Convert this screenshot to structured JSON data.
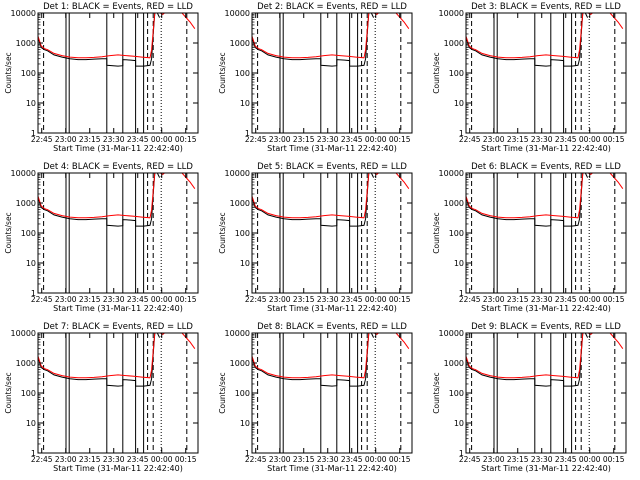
{
  "figure": {
    "shared": {
      "type": "line",
      "ylabel": "Counts/sec",
      "xlabel": "Start Time (31-Mar-11 22:42:40)",
      "yscale": "log",
      "ylim": [
        1,
        10000
      ],
      "y_ticks": [
        {
          "v": 1,
          "label": "1"
        },
        {
          "v": 10,
          "label": "10"
        },
        {
          "v": 100,
          "label": "100"
        },
        {
          "v": 1000,
          "label": "1000"
        },
        {
          "v": 10000,
          "label": "10000"
        }
      ],
      "xlim_minutes": [
        0,
        100
      ],
      "x_ticks": [
        {
          "v": 2.33,
          "label": "22:45"
        },
        {
          "v": 17.33,
          "label": "23:00"
        },
        {
          "v": 32.33,
          "label": "23:15"
        },
        {
          "v": 47.33,
          "label": "23:30"
        },
        {
          "v": 62.33,
          "label": "23:45"
        },
        {
          "v": 77.33,
          "label": "00:00"
        },
        {
          "v": 92.33,
          "label": "00:15"
        }
      ],
      "colors": {
        "black_series": "#000000",
        "red_series": "#ff0000",
        "background": "#ffffff"
      },
      "legend": "none"
    },
    "panels": [
      {
        "title": "Det 1: BLACK = Events, RED = LLD"
      },
      {
        "title": "Det 2: BLACK = Events, RED = LLD"
      },
      {
        "title": "Det 3: BLACK = Events, RED = LLD"
      },
      {
        "title": "Det 4: BLACK = Events, RED = LLD"
      },
      {
        "title": "Det 5: BLACK = Events, RED = LLD"
      },
      {
        "title": "Det 6: BLACK = Events, RED = LLD"
      },
      {
        "title": "Det 7: BLACK = Events, RED = LLD"
      },
      {
        "title": "Det 8: BLACK = Events, RED = LLD"
      },
      {
        "title": "Det 9: BLACK = Events, RED = LLD"
      }
    ]
  },
  "chart_data": {
    "type": "line",
    "ylabel": "Counts/sec",
    "xlabel": "Start Time (31-Mar-11 22:42:40)",
    "yscale": "log",
    "ylim": [
      1,
      10000
    ],
    "grid": false,
    "x_unit": "minutes since 22:42:40",
    "series": [
      {
        "name": "BLACK = Events",
        "color": "#000000",
        "x": [
          0,
          2,
          4,
          6,
          10,
          15,
          20,
          25,
          30,
          35,
          40,
          43,
          43,
          50,
          53,
          53,
          58,
          61,
          61,
          66,
          68,
          70,
          71,
          72,
          73,
          74,
          75,
          76
        ],
        "y": [
          1500,
          700,
          600,
          550,
          400,
          340,
          300,
          280,
          280,
          290,
          300,
          300,
          180,
          170,
          175,
          280,
          270,
          260,
          170,
          170,
          175,
          180,
          300,
          2000,
          10000,
          12000,
          9000,
          7000
        ]
      },
      {
        "name": "RED = LLD",
        "color": "#ff0000",
        "x": [
          0,
          2,
          4,
          6,
          10,
          15,
          20,
          25,
          30,
          35,
          40,
          45,
          50,
          55,
          60,
          65,
          70,
          71,
          72,
          73,
          74,
          75,
          78,
          80,
          85,
          90,
          95,
          98
        ],
        "y": [
          1700,
          800,
          650,
          600,
          450,
          380,
          340,
          320,
          320,
          330,
          350,
          380,
          400,
          380,
          360,
          340,
          320,
          600,
          2500,
          10000,
          13000,
          11000,
          9000,
          11000,
          13000,
          10000,
          5000,
          3000
        ]
      }
    ],
    "vertical_lines": [
      {
        "x": 3.5,
        "style": "dashed"
      },
      {
        "x": 17.5,
        "style": "solid"
      },
      {
        "x": 19.5,
        "style": "solid"
      },
      {
        "x": 43,
        "style": "solid"
      },
      {
        "x": 53,
        "style": "solid"
      },
      {
        "x": 61,
        "style": "solid"
      },
      {
        "x": 66,
        "style": "solid"
      },
      {
        "x": 68.5,
        "style": "dashed"
      },
      {
        "x": 72,
        "style": "dashed"
      },
      {
        "x": 77,
        "style": "dotted"
      },
      {
        "x": 93,
        "style": "dashed"
      }
    ]
  }
}
